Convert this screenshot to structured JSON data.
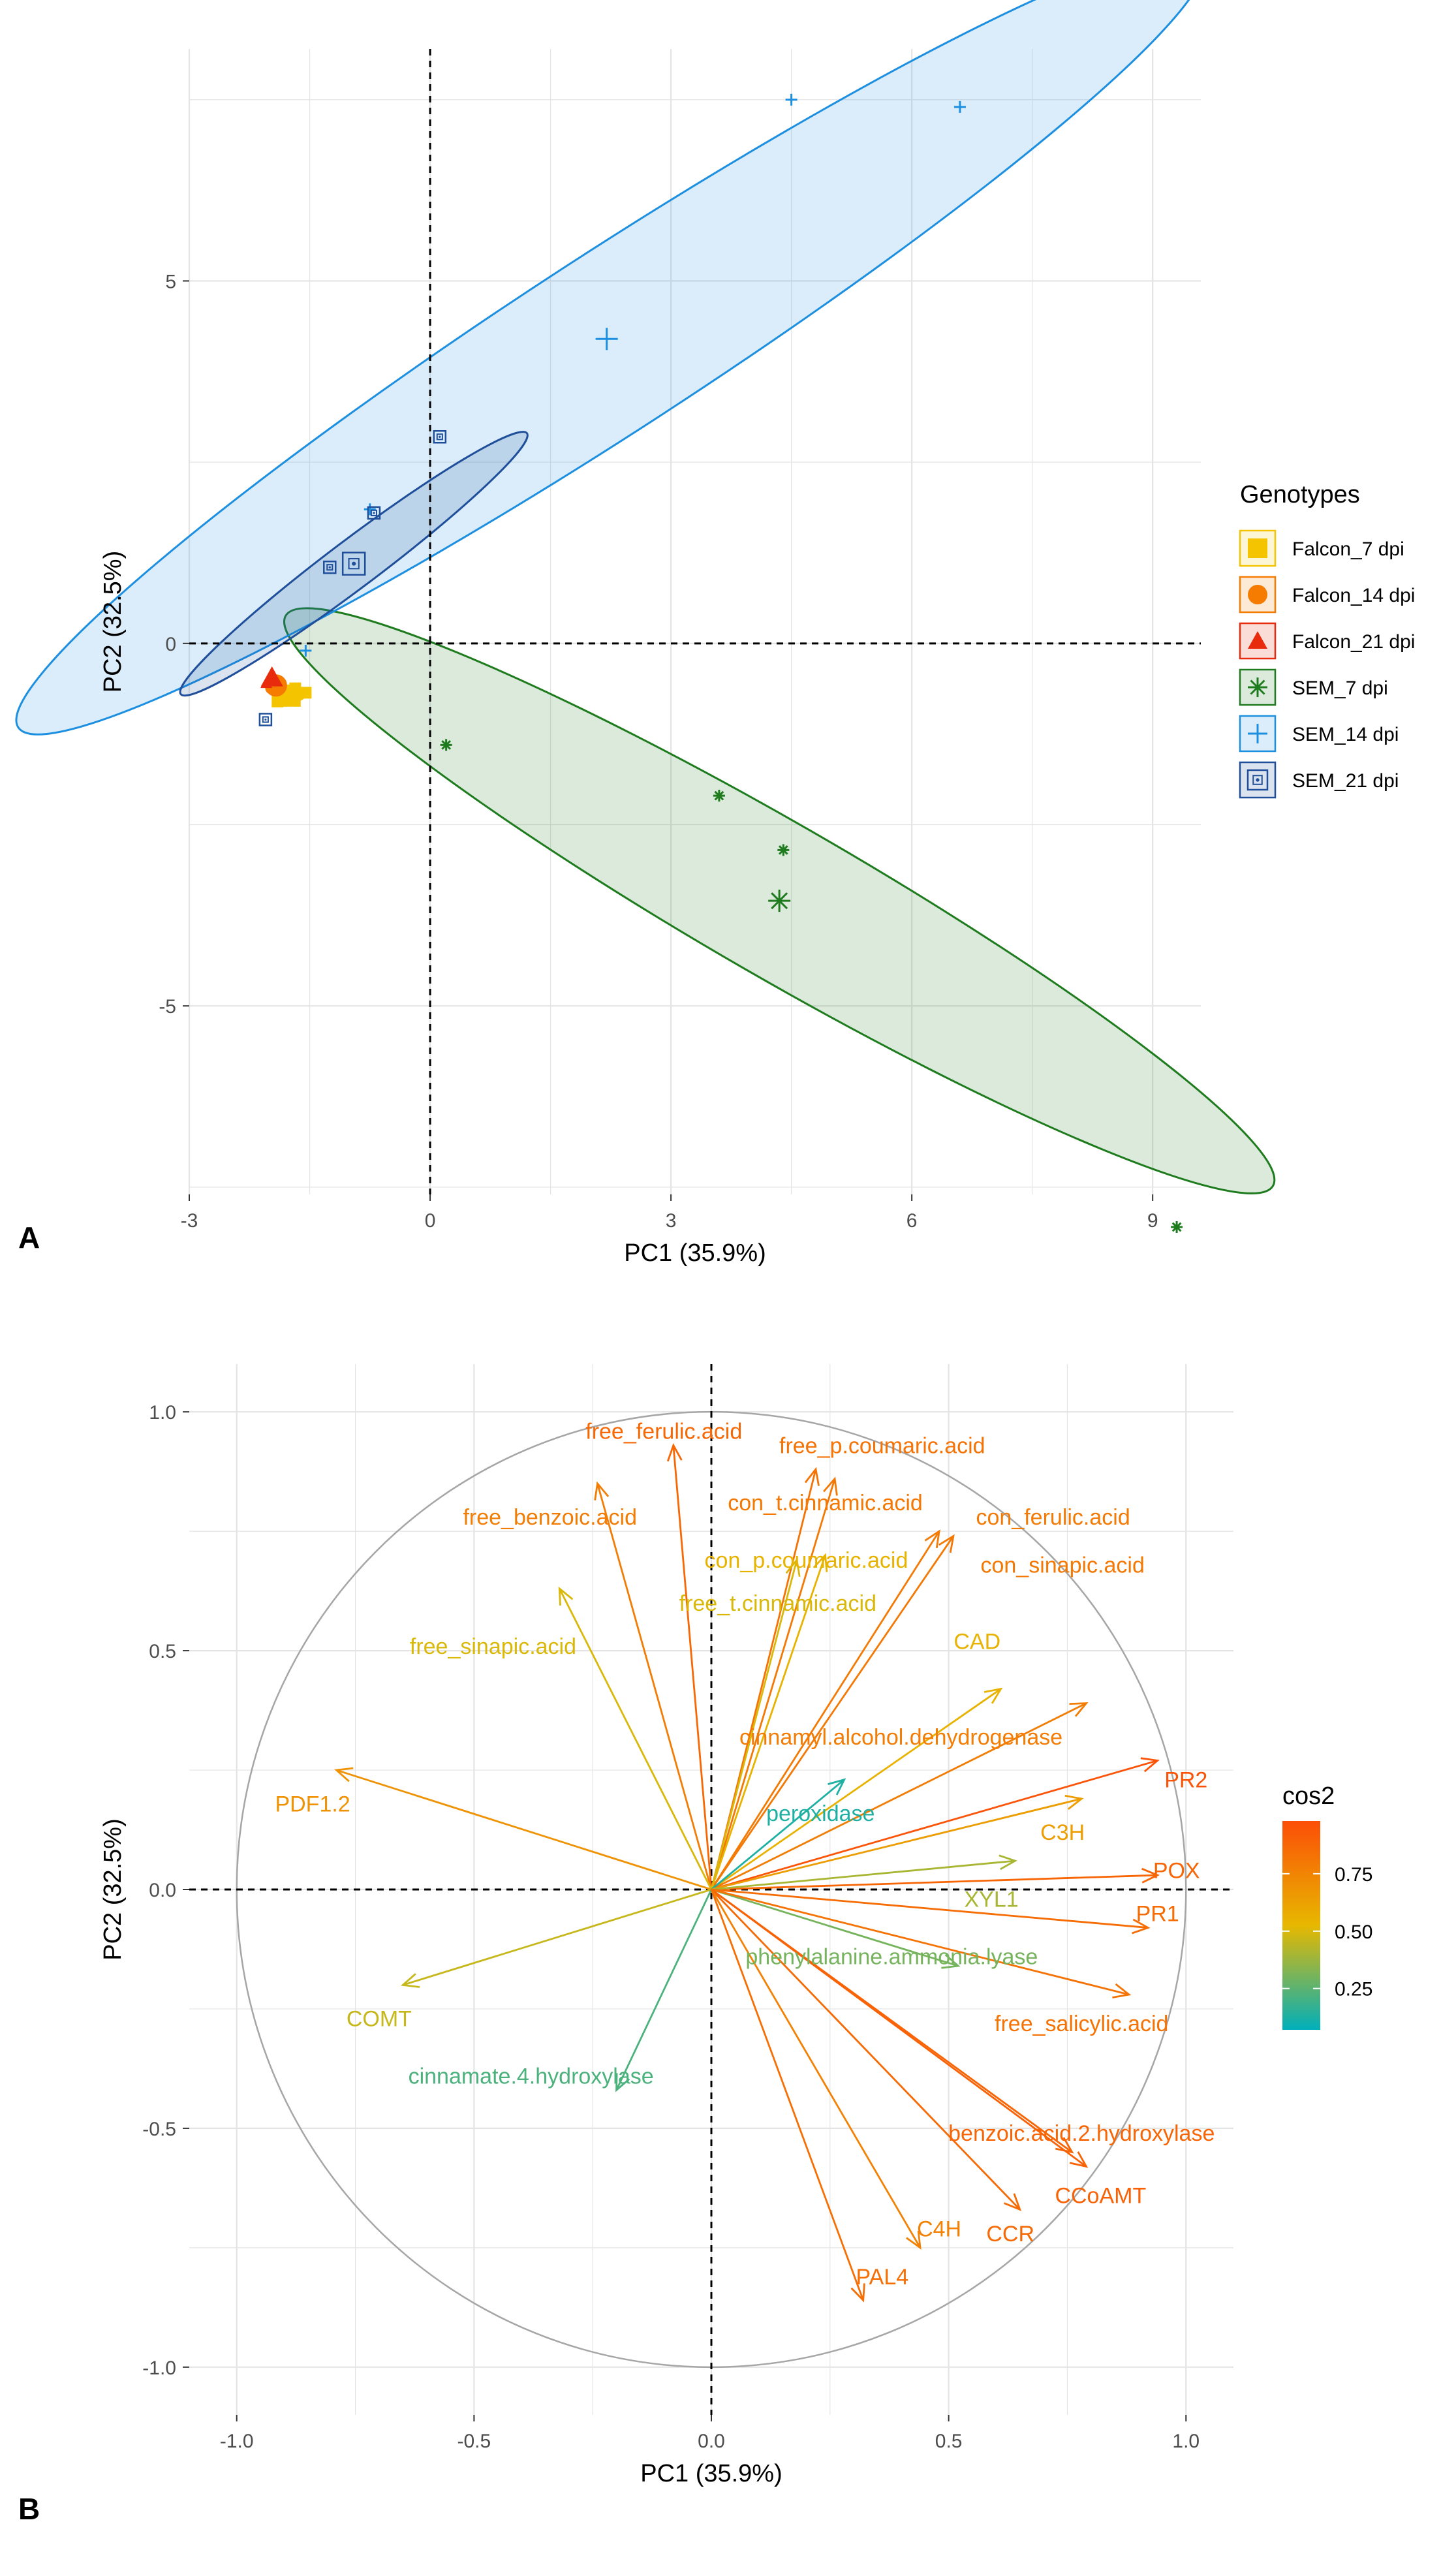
{
  "chart_data": [
    {
      "panel_label": "A",
      "type": "scatter",
      "title": "",
      "xlabel": "PC1 (35.9%)",
      "ylabel": "PC2 (32.5%)",
      "xlim": [
        -3.0,
        9.6
      ],
      "ylim": [
        -7.6,
        8.2
      ],
      "xticks": [
        -3,
        0,
        3,
        6,
        9
      ],
      "yticks": [
        -5,
        0,
        5
      ],
      "grid": true,
      "legend": {
        "title": "Genotypes",
        "position": "right"
      },
      "series": [
        {
          "name": "Falcon_7 dpi",
          "color": "#F5C400",
          "marker": "square",
          "points": [
            [
              -1.75,
              -0.72
            ],
            [
              -1.55,
              -0.68
            ],
            [
              -1.9,
              -0.8
            ],
            [
              -1.68,
              -0.62
            ]
          ],
          "centroid": [
            -1.75,
            -0.72
          ],
          "ellipse": {
            "cx": -1.72,
            "cy": -0.72,
            "rx": 0.18,
            "ry": 0.08,
            "angle_deg": 10
          }
        },
        {
          "name": "Falcon_14 dpi",
          "color": "#F57C00",
          "marker": "circle",
          "points": [
            [
              -1.92,
              -0.58
            ],
            [
              -1.86,
              -0.55
            ],
            [
              -1.98,
              -0.62
            ]
          ],
          "centroid": [
            -1.92,
            -0.58
          ],
          "ellipse": null
        },
        {
          "name": "Falcon_21 dpi",
          "color": "#E82B0C",
          "marker": "triangle",
          "points": [
            [
              -2.0,
              -0.5
            ],
            [
              -1.96,
              -0.45
            ],
            [
              -2.04,
              -0.55
            ]
          ],
          "centroid": [
            -1.97,
            -0.47
          ],
          "ellipse": null
        },
        {
          "name": "SEM_7 dpi",
          "color": "#1E7B1E",
          "marker": "asterisk",
          "points": [
            [
              0.2,
              -1.4
            ],
            [
              3.6,
              -2.1
            ],
            [
              4.4,
              -2.85
            ],
            [
              9.3,
              -8.05
            ]
          ],
          "centroid": [
            4.35,
            -3.55
          ],
          "ellipse": {
            "cx": 4.35,
            "cy": -3.55,
            "rx": 7.1,
            "ry": 0.95,
            "angle_deg": -30
          }
        },
        {
          "name": "SEM_14 dpi",
          "color": "#1D8FE0",
          "marker": "plus",
          "points": [
            [
              -0.75,
              1.85
            ],
            [
              4.5,
              7.5
            ],
            [
              6.6,
              7.4
            ],
            [
              -1.55,
              -0.1
            ]
          ],
          "centroid": [
            2.2,
            4.2
          ],
          "ellipse": {
            "cx": 2.25,
            "cy": 4.15,
            "rx": 8.8,
            "ry": 1.1,
            "angle_deg": 33
          }
        },
        {
          "name": "SEM_21 dpi",
          "color": "#1F4E9A",
          "marker": "boxed-dot",
          "points": [
            [
              -2.05,
              -1.05
            ],
            [
              -1.25,
              1.05
            ],
            [
              -0.7,
              1.8
            ],
            [
              0.12,
              2.85
            ]
          ],
          "centroid": [
            -0.95,
            1.1
          ],
          "ellipse": {
            "cx": -0.95,
            "cy": 1.1,
            "rx": 2.7,
            "ry": 0.3,
            "angle_deg": 37
          }
        }
      ]
    },
    {
      "panel_label": "B",
      "type": "biplot-vectors",
      "title": "",
      "xlabel": "PC1 (35.9%)",
      "ylabel": "PC2 (32.5%)",
      "xlim": [
        -1.1,
        1.1
      ],
      "ylim": [
        -1.1,
        1.1
      ],
      "xticks": [
        -1.0,
        -0.5,
        0.0,
        0.5,
        1.0
      ],
      "yticks": [
        -1.0,
        -0.5,
        0.0,
        0.5,
        1.0
      ],
      "grid": true,
      "legend": {
        "title": "cos2",
        "position": "right",
        "ticks": [
          "0.75",
          "0.50",
          "0.25"
        ],
        "tick_values": [
          0.75,
          0.5,
          0.25
        ],
        "range": [
          0.07,
          0.98
        ]
      },
      "gradient_colors": [
        "#00AFBB",
        "#E7B800",
        "#FC4E07"
      ],
      "variables": [
        {
          "name": "free_ferulic.acid",
          "x": -0.08,
          "y": 0.93,
          "cos2": 0.87,
          "lx": -0.1,
          "ly": 0.96,
          "anchor": "middle"
        },
        {
          "name": "free_p.coumaric.acid",
          "x": 0.22,
          "y": 0.88,
          "cos2": 0.82,
          "lx": 0.36,
          "ly": 0.93,
          "anchor": "middle"
        },
        {
          "name": "con_t.cinnamic.acid",
          "x": 0.26,
          "y": 0.86,
          "cos2": 0.8,
          "lx": 0.24,
          "ly": 0.81,
          "anchor": "middle"
        },
        {
          "name": "free_benzoic.acid",
          "x": -0.24,
          "y": 0.85,
          "cos2": 0.78,
          "lx": -0.34,
          "ly": 0.78,
          "anchor": "middle"
        },
        {
          "name": "con_ferulic.acid",
          "x": 0.48,
          "y": 0.75,
          "cos2": 0.79,
          "lx": 0.72,
          "ly": 0.78,
          "anchor": "middle"
        },
        {
          "name": "con_sinapic.acid",
          "x": 0.51,
          "y": 0.74,
          "cos2": 0.8,
          "lx": 0.74,
          "ly": 0.68,
          "anchor": "middle"
        },
        {
          "name": "con_p.coumaric.acid",
          "x": 0.24,
          "y": 0.7,
          "cos2": 0.55,
          "lx": 0.2,
          "ly": 0.69,
          "anchor": "middle"
        },
        {
          "name": "free_t.cinnamic.acid",
          "x": 0.18,
          "y": 0.69,
          "cos2": 0.5,
          "lx": 0.14,
          "ly": 0.6,
          "anchor": "middle"
        },
        {
          "name": "free_sinapic.acid",
          "x": -0.32,
          "y": 0.63,
          "cos2": 0.5,
          "lx": -0.46,
          "ly": 0.51,
          "anchor": "middle"
        },
        {
          "name": "CAD",
          "x": 0.61,
          "y": 0.42,
          "cos2": 0.55,
          "lx": 0.56,
          "ly": 0.52,
          "anchor": "middle"
        },
        {
          "name": "cinnamyl.alcohol.dehydrogenase",
          "x": 0.79,
          "y": 0.39,
          "cos2": 0.78,
          "lx": 0.74,
          "ly": 0.32,
          "anchor": "end"
        },
        {
          "name": "PR2",
          "x": 0.94,
          "y": 0.27,
          "cos2": 0.96,
          "lx": 1.0,
          "ly": 0.23,
          "anchor": "middle"
        },
        {
          "name": "peroxidase",
          "x": 0.28,
          "y": 0.23,
          "cos2": 0.13,
          "lx": 0.23,
          "ly": 0.16,
          "anchor": "middle"
        },
        {
          "name": "PDF1.2",
          "x": -0.79,
          "y": 0.25,
          "cos2": 0.69,
          "lx": -0.84,
          "ly": 0.18,
          "anchor": "middle"
        },
        {
          "name": "C3H",
          "x": 0.78,
          "y": 0.19,
          "cos2": 0.64,
          "lx": 0.74,
          "ly": 0.12,
          "anchor": "middle"
        },
        {
          "name": "POX",
          "x": 0.94,
          "y": 0.03,
          "cos2": 0.88,
          "lx": 0.98,
          "ly": 0.04,
          "anchor": "middle"
        },
        {
          "name": "XYL1",
          "x": 0.64,
          "y": 0.06,
          "cos2": 0.4,
          "lx": 0.59,
          "ly": -0.02,
          "anchor": "middle"
        },
        {
          "name": "PR1",
          "x": 0.92,
          "y": -0.08,
          "cos2": 0.85,
          "lx": 0.94,
          "ly": -0.05,
          "anchor": "middle"
        },
        {
          "name": "phenylalanine.ammonia.lyase",
          "x": 0.52,
          "y": -0.16,
          "cos2": 0.3,
          "lx": 0.38,
          "ly": -0.14,
          "anchor": "middle"
        },
        {
          "name": "free_salicylic.acid",
          "x": 0.88,
          "y": -0.22,
          "cos2": 0.82,
          "lx": 0.78,
          "ly": -0.28,
          "anchor": "middle"
        },
        {
          "name": "COMT",
          "x": -0.65,
          "y": -0.2,
          "cos2": 0.46,
          "lx": -0.7,
          "ly": -0.27,
          "anchor": "middle"
        },
        {
          "name": "cinnamate.4.hydroxylase",
          "x": -0.2,
          "y": -0.42,
          "cos2": 0.22,
          "lx": -0.38,
          "ly": -0.39,
          "anchor": "middle"
        },
        {
          "name": "benzoic.acid.2.hydroxylase",
          "x": 0.76,
          "y": -0.55,
          "cos2": 0.88,
          "lx": 0.78,
          "ly": -0.51,
          "anchor": "middle"
        },
        {
          "name": "CCoAMT",
          "x": 0.79,
          "y": -0.58,
          "cos2": 0.9,
          "lx": 0.82,
          "ly": -0.64,
          "anchor": "middle"
        },
        {
          "name": "CCR",
          "x": 0.65,
          "y": -0.67,
          "cos2": 0.86,
          "lx": 0.63,
          "ly": -0.72,
          "anchor": "middle"
        },
        {
          "name": "C4H",
          "x": 0.44,
          "y": -0.75,
          "cos2": 0.76,
          "lx": 0.48,
          "ly": -0.71,
          "anchor": "middle"
        },
        {
          "name": "PAL4",
          "x": 0.32,
          "y": -0.86,
          "cos2": 0.84,
          "lx": 0.36,
          "ly": -0.81,
          "anchor": "middle"
        }
      ]
    }
  ]
}
